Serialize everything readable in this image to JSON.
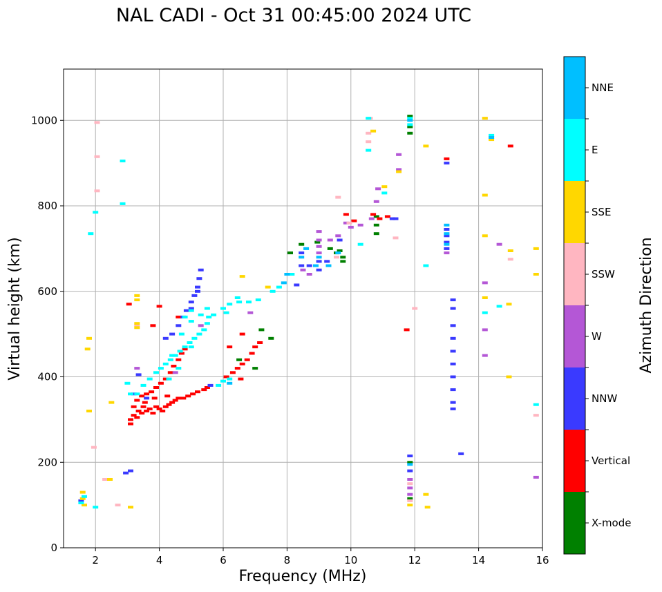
{
  "chart_data": {
    "type": "scatter",
    "title": "NAL CADI - Oct 31 00:45:00 2024 UTC",
    "xlabel": "Frequency (MHz)",
    "ylabel": "Virtual height (km)",
    "xlim": [
      1,
      16
    ],
    "ylim": [
      0,
      1120
    ],
    "xticks": [
      "2",
      "4",
      "6",
      "8",
      "10",
      "12",
      "14",
      "16"
    ],
    "yticks": [
      "0",
      "200",
      "400",
      "600",
      "800",
      "1000"
    ],
    "grid": true,
    "colorbar": {
      "label": "Azimuth Direction",
      "position": "right",
      "categories": [
        {
          "name": "X-mode",
          "color": "#008000"
        },
        {
          "name": "Vertical",
          "color": "#ff0000"
        },
        {
          "name": "NNW",
          "color": "#3a3aff"
        },
        {
          "name": "W",
          "color": "#b457d6"
        },
        {
          "name": "SSW",
          "color": "#ffb6c1"
        },
        {
          "name": "SSE",
          "color": "#ffd700"
        },
        {
          "name": "E",
          "color": "#00ffff"
        },
        {
          "name": "NNE",
          "color": "#00bfff"
        }
      ]
    },
    "series": [
      {
        "name": "X-mode",
        "points": [
          [
            8.45,
            710
          ],
          [
            8.95,
            715
          ],
          [
            9.35,
            700
          ],
          [
            9.65,
            695
          ],
          [
            9.75,
            680
          ],
          [
            9.75,
            670
          ],
          [
            9.55,
            690
          ],
          [
            10.8,
            775
          ],
          [
            10.8,
            755
          ],
          [
            10.8,
            735
          ],
          [
            11.85,
            1010
          ],
          [
            11.85,
            985
          ],
          [
            11.85,
            970
          ],
          [
            11.85,
            200
          ],
          [
            11.85,
            115
          ],
          [
            6.5,
            440
          ],
          [
            7.0,
            420
          ],
          [
            7.2,
            510
          ],
          [
            7.5,
            490
          ],
          [
            8.1,
            690
          ]
        ]
      },
      {
        "name": "Vertical",
        "points": [
          [
            3.1,
            300
          ],
          [
            3.2,
            310
          ],
          [
            3.3,
            305
          ],
          [
            3.35,
            320
          ],
          [
            3.45,
            315
          ],
          [
            3.5,
            330
          ],
          [
            3.6,
            320
          ],
          [
            3.7,
            325
          ],
          [
            3.8,
            315
          ],
          [
            3.9,
            330
          ],
          [
            4.0,
            325
          ],
          [
            4.1,
            320
          ],
          [
            4.2,
            330
          ],
          [
            4.3,
            335
          ],
          [
            4.4,
            340
          ],
          [
            4.5,
            345
          ],
          [
            4.6,
            350
          ],
          [
            4.75,
            350
          ],
          [
            4.9,
            355
          ],
          [
            5.05,
            360
          ],
          [
            5.2,
            365
          ],
          [
            5.4,
            370
          ],
          [
            3.2,
            330
          ],
          [
            3.3,
            345
          ],
          [
            3.45,
            355
          ],
          [
            3.6,
            360
          ],
          [
            3.75,
            365
          ],
          [
            3.9,
            375
          ],
          [
            4.05,
            385
          ],
          [
            4.2,
            395
          ],
          [
            4.35,
            410
          ],
          [
            4.45,
            425
          ],
          [
            4.6,
            440
          ],
          [
            4.7,
            455
          ],
          [
            4.8,
            465
          ],
          [
            3.1,
            290
          ],
          [
            3.55,
            340
          ],
          [
            3.85,
            350
          ],
          [
            4.25,
            355
          ],
          [
            6.1,
            400
          ],
          [
            6.3,
            410
          ],
          [
            6.45,
            420
          ],
          [
            6.6,
            430
          ],
          [
            6.75,
            440
          ],
          [
            6.9,
            455
          ],
          [
            7.0,
            470
          ],
          [
            7.15,
            480
          ],
          [
            6.55,
            395
          ],
          [
            6.2,
            470
          ],
          [
            6.6,
            500
          ],
          [
            9.85,
            780
          ],
          [
            10.1,
            765
          ],
          [
            10.7,
            780
          ],
          [
            10.9,
            770
          ],
          [
            11.15,
            775
          ],
          [
            13.0,
            910
          ],
          [
            15.0,
            940
          ],
          [
            11.75,
            510
          ],
          [
            3.05,
            570
          ],
          [
            4.0,
            565
          ],
          [
            3.8,
            520
          ],
          [
            4.6,
            540
          ],
          [
            5.5,
            375
          ]
        ]
      },
      {
        "name": "NNW",
        "points": [
          [
            4.2,
            490
          ],
          [
            4.4,
            500
          ],
          [
            4.6,
            520
          ],
          [
            4.75,
            540
          ],
          [
            4.85,
            555
          ],
          [
            5.0,
            575
          ],
          [
            5.1,
            590
          ],
          [
            5.2,
            610
          ],
          [
            5.25,
            630
          ],
          [
            5.3,
            650
          ],
          [
            5.2,
            600
          ],
          [
            5.0,
            560
          ],
          [
            8.45,
            690
          ],
          [
            8.45,
            660
          ],
          [
            8.7,
            660
          ],
          [
            9.0,
            670
          ],
          [
            9.0,
            650
          ],
          [
            9.25,
            670
          ],
          [
            9.65,
            720
          ],
          [
            8.3,
            615
          ],
          [
            13.0,
            900
          ],
          [
            13.0,
            745
          ],
          [
            13.0,
            730
          ],
          [
            13.0,
            715
          ],
          [
            13.0,
            700
          ],
          [
            13.2,
            580
          ],
          [
            13.2,
            560
          ],
          [
            13.2,
            520
          ],
          [
            13.2,
            490
          ],
          [
            13.2,
            460
          ],
          [
            13.2,
            430
          ],
          [
            13.2,
            400
          ],
          [
            13.2,
            370
          ],
          [
            13.2,
            340
          ],
          [
            13.2,
            325
          ],
          [
            11.85,
            215
          ],
          [
            11.85,
            180
          ],
          [
            3.2,
            360
          ],
          [
            3.6,
            350
          ],
          [
            5.6,
            380
          ],
          [
            3.35,
            405
          ],
          [
            1.55,
            110
          ],
          [
            13.45,
            220
          ],
          [
            2.95,
            175
          ],
          [
            3.1,
            180
          ],
          [
            11.3,
            770
          ],
          [
            11.4,
            770
          ]
        ]
      },
      {
        "name": "W",
        "points": [
          [
            8.5,
            650
          ],
          [
            8.7,
            640
          ],
          [
            9.0,
            690
          ],
          [
            9.0,
            705
          ],
          [
            9.0,
            720
          ],
          [
            9.0,
            740
          ],
          [
            9.35,
            720
          ],
          [
            9.6,
            730
          ],
          [
            9.85,
            760
          ],
          [
            10.0,
            750
          ],
          [
            10.3,
            755
          ],
          [
            10.65,
            770
          ],
          [
            10.85,
            840
          ],
          [
            10.8,
            810
          ],
          [
            11.5,
            920
          ],
          [
            11.5,
            885
          ],
          [
            13.0,
            690
          ],
          [
            14.2,
            620
          ],
          [
            14.2,
            510
          ],
          [
            14.2,
            450
          ],
          [
            14.65,
            710
          ],
          [
            15.8,
            165
          ],
          [
            11.85,
            160
          ],
          [
            11.85,
            140
          ],
          [
            11.85,
            125
          ],
          [
            4.5,
            410
          ],
          [
            3.3,
            420
          ],
          [
            5.3,
            520
          ],
          [
            6.85,
            550
          ]
        ]
      },
      {
        "name": "SSW",
        "points": [
          [
            2.05,
            995
          ],
          [
            2.05,
            915
          ],
          [
            2.05,
            835
          ],
          [
            10.55,
            950
          ],
          [
            10.55,
            970
          ],
          [
            10.6,
            1005
          ],
          [
            9.6,
            820
          ],
          [
            9.55,
            680
          ],
          [
            9.95,
            760
          ],
          [
            11.4,
            725
          ],
          [
            12.0,
            560
          ],
          [
            14.2,
            1005
          ],
          [
            15.0,
            675
          ],
          [
            15.8,
            310
          ],
          [
            11.85,
            150
          ],
          [
            11.85,
            110
          ],
          [
            2.3,
            160
          ],
          [
            2.7,
            100
          ],
          [
            3.3,
            520
          ],
          [
            1.95,
            235
          ]
        ]
      },
      {
        "name": "SSE",
        "points": [
          [
            1.6,
            130
          ],
          [
            1.6,
            115
          ],
          [
            1.65,
            100
          ],
          [
            1.75,
            465
          ],
          [
            1.8,
            490
          ],
          [
            1.8,
            320
          ],
          [
            3.1,
            95
          ],
          [
            3.3,
            590
          ],
          [
            3.3,
            580
          ],
          [
            3.3,
            525
          ],
          [
            3.3,
            515
          ],
          [
            2.45,
            160
          ],
          [
            2.5,
            340
          ],
          [
            6.6,
            635
          ],
          [
            7.4,
            610
          ],
          [
            10.7,
            975
          ],
          [
            11.05,
            845
          ],
          [
            11.5,
            880
          ],
          [
            12.35,
            940
          ],
          [
            12.35,
            125
          ],
          [
            12.4,
            95
          ],
          [
            14.2,
            1005
          ],
          [
            14.2,
            825
          ],
          [
            14.2,
            730
          ],
          [
            14.2,
            585
          ],
          [
            14.4,
            955
          ],
          [
            14.95,
            570
          ],
          [
            14.95,
            400
          ],
          [
            15.0,
            695
          ],
          [
            15.8,
            700
          ],
          [
            15.8,
            640
          ],
          [
            11.85,
            100
          ]
        ]
      },
      {
        "name": "E",
        "points": [
          [
            1.85,
            735
          ],
          [
            2.0,
            785
          ],
          [
            2.85,
            905
          ],
          [
            2.85,
            805
          ],
          [
            3.0,
            385
          ],
          [
            3.3,
            360
          ],
          [
            3.5,
            380
          ],
          [
            3.7,
            395
          ],
          [
            3.9,
            410
          ],
          [
            4.05,
            420
          ],
          [
            4.2,
            430
          ],
          [
            4.35,
            440
          ],
          [
            4.5,
            450
          ],
          [
            4.65,
            460
          ],
          [
            4.8,
            470
          ],
          [
            4.95,
            480
          ],
          [
            5.1,
            490
          ],
          [
            5.25,
            500
          ],
          [
            5.4,
            510
          ],
          [
            5.5,
            525
          ],
          [
            5.55,
            540
          ],
          [
            4.4,
            450
          ],
          [
            4.7,
            500
          ],
          [
            5.0,
            530
          ],
          [
            5.3,
            545
          ],
          [
            5.5,
            560
          ],
          [
            5.0,
            470
          ],
          [
            4.6,
            420
          ],
          [
            4.3,
            395
          ],
          [
            6.0,
            560
          ],
          [
            6.2,
            570
          ],
          [
            6.5,
            575
          ],
          [
            6.8,
            575
          ],
          [
            7.1,
            580
          ],
          [
            6.1,
            550
          ],
          [
            6.45,
            585
          ],
          [
            5.85,
            380
          ],
          [
            6.0,
            390
          ],
          [
            6.2,
            395
          ],
          [
            7.55,
            600
          ],
          [
            7.75,
            610
          ],
          [
            8.15,
            640
          ],
          [
            10.3,
            710
          ],
          [
            10.55,
            1005
          ],
          [
            10.55,
            930
          ],
          [
            11.05,
            830
          ],
          [
            12.35,
            660
          ],
          [
            14.2,
            550
          ],
          [
            14.4,
            965
          ],
          [
            14.65,
            565
          ],
          [
            15.8,
            335
          ],
          [
            11.85,
            1005
          ],
          [
            11.85,
            990
          ],
          [
            1.55,
            105
          ],
          [
            1.65,
            120
          ],
          [
            2.0,
            95
          ],
          [
            3.1,
            360
          ],
          [
            4.8,
            540
          ],
          [
            5.0,
            555
          ],
          [
            5.7,
            545
          ]
        ]
      },
      {
        "name": "NNE",
        "points": [
          [
            8.45,
            680
          ],
          [
            8.9,
            660
          ],
          [
            9.0,
            680
          ],
          [
            9.3,
            660
          ],
          [
            9.6,
            690
          ],
          [
            8.6,
            700
          ],
          [
            13.0,
            755
          ],
          [
            13.0,
            735
          ],
          [
            13.0,
            710
          ],
          [
            8.0,
            640
          ],
          [
            7.9,
            620
          ],
          [
            6.2,
            385
          ],
          [
            11.85,
            1000
          ],
          [
            11.85,
            195
          ],
          [
            14.4,
            960
          ]
        ]
      }
    ]
  }
}
